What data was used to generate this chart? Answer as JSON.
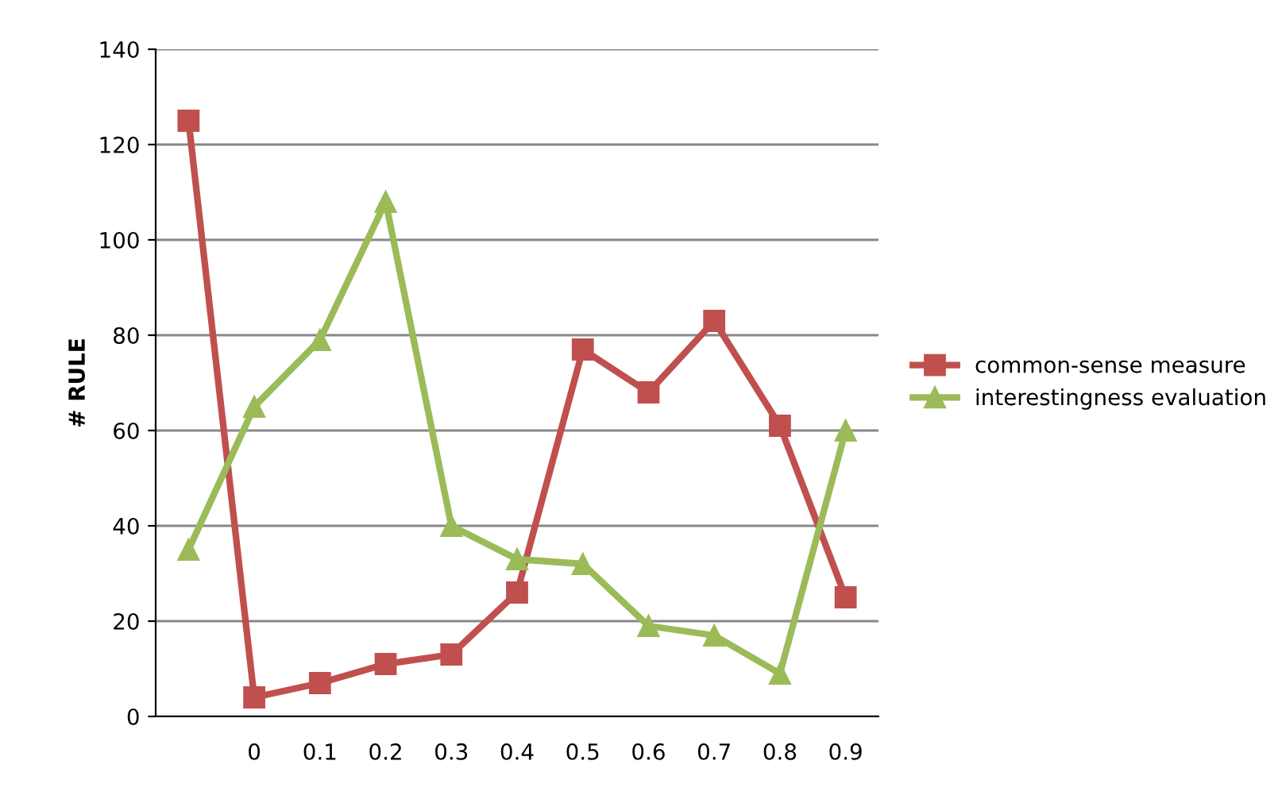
{
  "chart_data": {
    "type": "line",
    "ylabel": "# RULE",
    "categories": [
      null,
      "0",
      "0.1",
      "0.2",
      "0.3",
      "0.4",
      "0.5",
      "0.6",
      "0.7",
      "0.8",
      "0.9"
    ],
    "series": [
      {
        "name": "common-sense measure",
        "color": "#c0504d",
        "marker": "square",
        "values": [
          125,
          4,
          7,
          11,
          13,
          26,
          77,
          68,
          83,
          61,
          25
        ]
      },
      {
        "name": "interestingness evaluation",
        "color": "#9bbb59",
        "marker": "triangle",
        "values": [
          35,
          65,
          79,
          108,
          40,
          33,
          32,
          19,
          17,
          9,
          60
        ]
      }
    ],
    "ylim": [
      0,
      140
    ],
    "yticks": [
      0,
      20,
      40,
      60,
      80,
      100,
      120,
      140
    ],
    "grid": "y",
    "legend": "right",
    "line_style": "solid"
  }
}
